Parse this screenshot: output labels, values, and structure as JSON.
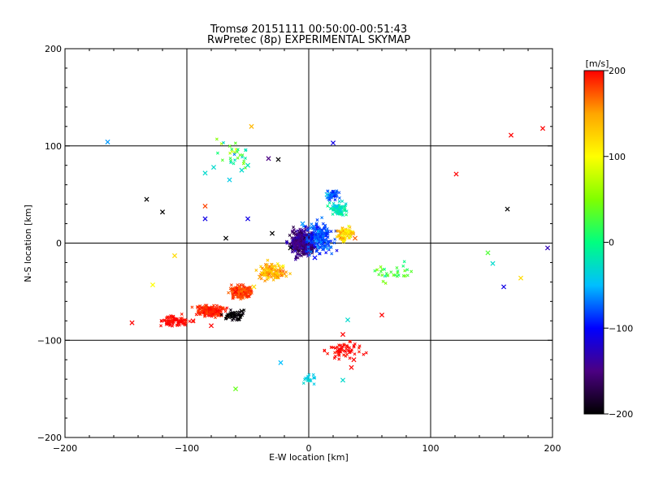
{
  "chart_data": {
    "type": "scatter",
    "title": "Tromsø 20151111 00:50:00-00:51:43",
    "subtitle": "RwPretec (8p) EXPERIMENTAL SKYMAP",
    "xlabel": "E-W location [km]",
    "ylabel": "N-S location [km]",
    "xlim": [
      -200,
      200
    ],
    "ylim": [
      -200,
      200
    ],
    "xticks": [
      "−200",
      "−100",
      "0",
      "100",
      "200"
    ],
    "yticks": [
      "−200",
      "−100",
      "0",
      "100",
      "200"
    ],
    "grid": true,
    "colorbar": {
      "label": "[m/s]",
      "range": [
        -200,
        200
      ],
      "ticks": [
        "200",
        "100",
        "0",
        "−100",
        "−200"
      ],
      "colors": [
        "#000000",
        "#4b0082",
        "#0000ff",
        "#00bfff",
        "#00ff80",
        "#80ff00",
        "#ffff00",
        "#ffa500",
        "#ff0000"
      ]
    },
    "series": [
      {
        "marker": "x",
        "points": [
          {
            "x": -165,
            "y": 104,
            "v": -60
          },
          {
            "x": -133,
            "y": 45,
            "v": -200
          },
          {
            "x": -120,
            "y": 32,
            "v": -200
          },
          {
            "x": -110,
            "y": -13,
            "v": 120
          },
          {
            "x": -128,
            "y": -43,
            "v": 100
          },
          {
            "x": -145,
            "y": -82,
            "v": 200
          },
          {
            "x": -85,
            "y": 72,
            "v": -30
          },
          {
            "x": -78,
            "y": 78,
            "v": -30
          },
          {
            "x": -85,
            "y": 38,
            "v": 180
          },
          {
            "x": -85,
            "y": 25,
            "v": -110
          },
          {
            "x": -65,
            "y": 65,
            "v": -40
          },
          {
            "x": -55,
            "y": 75,
            "v": -30
          },
          {
            "x": -50,
            "y": 80,
            "v": -20
          },
          {
            "x": -47,
            "y": 120,
            "v": 140
          },
          {
            "x": -33,
            "y": 87,
            "v": -150
          },
          {
            "x": -25,
            "y": 86,
            "v": -200
          },
          {
            "x": -50,
            "y": 25,
            "v": -110
          },
          {
            "x": -68,
            "y": 5,
            "v": -200
          },
          {
            "x": 20,
            "y": 103,
            "v": -110
          },
          {
            "x": 121,
            "y": 71,
            "v": 200
          },
          {
            "x": 166,
            "y": 111,
            "v": 200
          },
          {
            "x": 192,
            "y": 118,
            "v": 200
          },
          {
            "x": 163,
            "y": 35,
            "v": -200
          },
          {
            "x": 147,
            "y": -10,
            "v": 30
          },
          {
            "x": 151,
            "y": -21,
            "v": -30
          },
          {
            "x": 160,
            "y": -45,
            "v": -110
          },
          {
            "x": 174,
            "y": -36,
            "v": 120
          },
          {
            "x": 196,
            "y": -5,
            "v": -130
          },
          {
            "x": -60,
            "y": -150,
            "v": 40
          },
          {
            "x": -23,
            "y": -123,
            "v": -50
          },
          {
            "x": 28,
            "y": -141,
            "v": -30
          },
          {
            "x": 37,
            "y": -120,
            "v": 200
          },
          {
            "x": 35,
            "y": -128,
            "v": 200
          },
          {
            "x": 28,
            "y": -94,
            "v": 200
          },
          {
            "x": 60,
            "y": -74,
            "v": 200
          },
          {
            "x": 32,
            "y": -79,
            "v": -30
          },
          {
            "x": 38,
            "y": 5,
            "v": 170
          },
          {
            "x": -30,
            "y": 10,
            "v": -200
          },
          {
            "x": -15,
            "y": -5,
            "v": -200
          },
          {
            "x": -40,
            "y": -35,
            "v": 150
          },
          {
            "x": -60,
            "y": -50,
            "v": 200
          },
          {
            "x": -75,
            "y": -70,
            "v": 200
          },
          {
            "x": -95,
            "y": -80,
            "v": 200
          },
          {
            "x": -55,
            "y": -70,
            "v": -200
          },
          {
            "x": -10,
            "y": 0,
            "v": -150
          },
          {
            "x": 5,
            "y": -15,
            "v": -100
          },
          {
            "x": -5,
            "y": 20,
            "v": -60
          },
          {
            "x": 15,
            "y": 50,
            "v": -40
          },
          {
            "x": -45,
            "y": -45,
            "v": 120
          },
          {
            "x": -80,
            "y": -85,
            "v": 200
          }
        ]
      }
    ]
  }
}
